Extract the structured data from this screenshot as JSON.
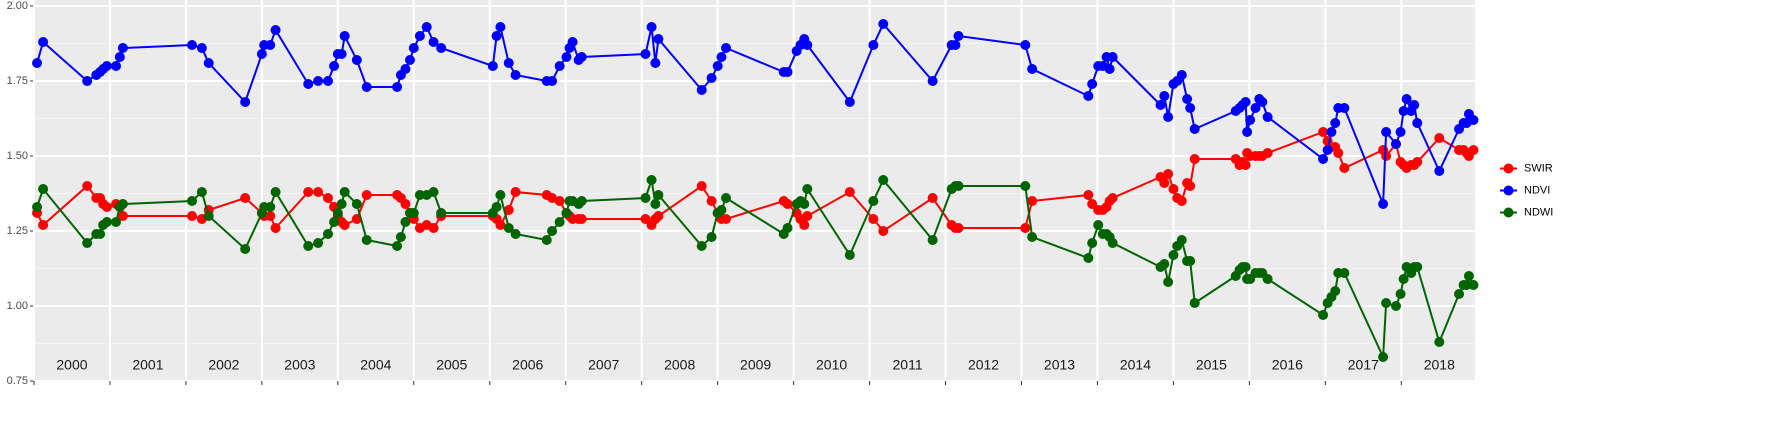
{
  "chart_data": {
    "type": "line",
    "x": [
      2000.04,
      2000.12,
      2000.7,
      2000.82,
      2000.87,
      2000.91,
      2000.96,
      2001.08,
      2001.13,
      2001.17,
      2002.08,
      2002.21,
      2002.3,
      2002.78,
      2003.0,
      2003.03,
      2003.11,
      2003.18,
      2003.61,
      2003.74,
      2003.87,
      2003.95,
      2004.0,
      2004.05,
      2004.09,
      2004.25,
      2004.38,
      2004.78,
      2004.83,
      2004.89,
      2004.95,
      2005.0,
      2005.08,
      2005.17,
      2005.26,
      2005.36,
      2006.04,
      2006.09,
      2006.14,
      2006.25,
      2006.34,
      2006.75,
      2006.82,
      2006.92,
      2007.01,
      2007.05,
      2007.09,
      2007.17,
      2007.21,
      2008.05,
      2008.13,
      2008.18,
      2008.22,
      2008.79,
      2008.92,
      2009.0,
      2009.05,
      2009.11,
      2009.87,
      2009.92,
      2010.04,
      2010.09,
      2010.14,
      2010.18,
      2010.74,
      2011.05,
      2011.18,
      2011.83,
      2012.08,
      2012.13,
      2012.17,
      2013.05,
      2013.14,
      2013.88,
      2013.93,
      2014.01,
      2014.07,
      2014.12,
      2014.16,
      2014.2,
      2014.83,
      2014.88,
      2014.93,
      2015.0,
      2015.05,
      2015.11,
      2015.18,
      2015.22,
      2015.28,
      2015.82,
      2015.87,
      2015.91,
      2015.95,
      2015.97,
      2016.01,
      2016.08,
      2016.13,
      2016.17,
      2016.24,
      2016.97,
      2017.03,
      2017.08,
      2017.13,
      2017.17,
      2017.25,
      2017.76,
      2017.8,
      2017.93,
      2017.99,
      2018.03,
      2018.07,
      2018.13,
      2018.17,
      2018.21,
      2018.5,
      2018.76,
      2018.82,
      2018.86,
      2018.89,
      2018.95
    ],
    "series": [
      {
        "name": "SWIR",
        "color": "#ff0000",
        "values": [
          1.31,
          1.27,
          1.4,
          1.36,
          1.36,
          1.34,
          1.33,
          1.34,
          1.33,
          1.3,
          1.3,
          1.29,
          1.32,
          1.36,
          1.31,
          1.3,
          1.3,
          1.26,
          1.38,
          1.38,
          1.36,
          1.33,
          1.3,
          1.28,
          1.27,
          1.29,
          1.37,
          1.37,
          1.36,
          1.34,
          1.31,
          1.29,
          1.26,
          1.27,
          1.26,
          1.3,
          1.3,
          1.29,
          1.27,
          1.32,
          1.38,
          1.37,
          1.36,
          1.35,
          1.31,
          1.3,
          1.29,
          1.29,
          1.29,
          1.29,
          1.27,
          1.29,
          1.3,
          1.4,
          1.35,
          1.31,
          1.29,
          1.29,
          1.35,
          1.34,
          1.31,
          1.29,
          1.27,
          1.3,
          1.38,
          1.29,
          1.25,
          1.36,
          1.27,
          1.26,
          1.26,
          1.26,
          1.35,
          1.37,
          1.34,
          1.32,
          1.32,
          1.33,
          1.35,
          1.36,
          1.43,
          1.41,
          1.44,
          1.39,
          1.36,
          1.35,
          1.41,
          1.4,
          1.49,
          1.49,
          1.47,
          1.48,
          1.47,
          1.51,
          1.5,
          1.5,
          1.5,
          1.5,
          1.51,
          1.58,
          1.55,
          1.53,
          1.53,
          1.51,
          1.46,
          1.52,
          1.5,
          1.54,
          1.48,
          1.47,
          1.46,
          1.47,
          1.47,
          1.48,
          1.56,
          1.52,
          1.52,
          1.51,
          1.5,
          1.52
        ]
      },
      {
        "name": "NDVI",
        "color": "#0000ff",
        "values": [
          1.81,
          1.88,
          1.75,
          1.77,
          1.78,
          1.79,
          1.8,
          1.8,
          1.83,
          1.86,
          1.87,
          1.86,
          1.81,
          1.68,
          1.84,
          1.87,
          1.87,
          1.92,
          1.74,
          1.75,
          1.75,
          1.8,
          1.84,
          1.84,
          1.9,
          1.82,
          1.73,
          1.73,
          1.77,
          1.79,
          1.82,
          1.86,
          1.9,
          1.93,
          1.88,
          1.86,
          1.8,
          1.9,
          1.93,
          1.81,
          1.77,
          1.75,
          1.75,
          1.8,
          1.83,
          1.86,
          1.88,
          1.82,
          1.83,
          1.84,
          1.93,
          1.81,
          1.89,
          1.72,
          1.76,
          1.8,
          1.83,
          1.86,
          1.78,
          1.78,
          1.85,
          1.87,
          1.89,
          1.87,
          1.68,
          1.87,
          1.94,
          1.75,
          1.87,
          1.87,
          1.9,
          1.87,
          1.79,
          1.7,
          1.74,
          1.8,
          1.8,
          1.83,
          1.79,
          1.83,
          1.67,
          1.7,
          1.63,
          1.74,
          1.75,
          1.77,
          1.69,
          1.66,
          1.59,
          1.65,
          1.66,
          1.67,
          1.68,
          1.58,
          1.62,
          1.66,
          1.69,
          1.68,
          1.63,
          1.49,
          1.52,
          1.58,
          1.61,
          1.66,
          1.66,
          1.34,
          1.58,
          1.54,
          1.58,
          1.65,
          1.69,
          1.65,
          1.67,
          1.61,
          1.45,
          1.59,
          1.61,
          1.61,
          1.64,
          1.62
        ]
      },
      {
        "name": "NDWI",
        "color": "#006400",
        "values": [
          1.33,
          1.39,
          1.21,
          1.24,
          1.24,
          1.27,
          1.28,
          1.28,
          1.33,
          1.34,
          1.35,
          1.38,
          1.3,
          1.19,
          1.31,
          1.33,
          1.33,
          1.38,
          1.2,
          1.21,
          1.24,
          1.28,
          1.31,
          1.34,
          1.38,
          1.34,
          1.22,
          1.2,
          1.23,
          1.28,
          1.31,
          1.31,
          1.37,
          1.37,
          1.38,
          1.31,
          1.31,
          1.33,
          1.37,
          1.26,
          1.24,
          1.22,
          1.25,
          1.28,
          1.31,
          1.35,
          1.35,
          1.34,
          1.35,
          1.36,
          1.42,
          1.34,
          1.37,
          1.2,
          1.23,
          1.31,
          1.32,
          1.36,
          1.24,
          1.26,
          1.34,
          1.35,
          1.34,
          1.39,
          1.17,
          1.35,
          1.42,
          1.22,
          1.39,
          1.4,
          1.4,
          1.4,
          1.23,
          1.16,
          1.21,
          1.27,
          1.24,
          1.24,
          1.23,
          1.21,
          1.13,
          1.14,
          1.08,
          1.17,
          1.2,
          1.22,
          1.15,
          1.15,
          1.01,
          1.1,
          1.12,
          1.13,
          1.13,
          1.09,
          1.09,
          1.11,
          1.11,
          1.11,
          1.09,
          0.97,
          1.01,
          1.03,
          1.05,
          1.11,
          1.11,
          0.83,
          1.01,
          1.0,
          1.04,
          1.09,
          1.13,
          1.11,
          1.13,
          1.13,
          0.88,
          1.04,
          1.07,
          1.07,
          1.1,
          1.07
        ]
      }
    ],
    "xlim": [
      2000,
      2018.97
    ],
    "ylim": [
      0.75,
      2.02
    ],
    "yticks": [
      0.75,
      {
        "value": 1,
        "label": "1.00"
      },
      1.25,
      {
        "value": 1.5,
        "label": "1.50"
      },
      1.75,
      {
        "value": 2,
        "label": "2.00"
      }
    ],
    "xgrid": [
      2000,
      2001,
      2002,
      2003,
      2004,
      2005,
      2006,
      2007,
      2008,
      2009,
      2010,
      2011,
      2012,
      2013,
      2014,
      2015,
      2016,
      2017,
      2018
    ],
    "xticks": [
      {
        "value": 2000.5,
        "label": "2000"
      },
      {
        "value": 2001.5,
        "label": "2001"
      },
      {
        "value": 2002.5,
        "label": "2002"
      },
      {
        "value": 2003.5,
        "label": "2003"
      },
      {
        "value": 2004.5,
        "label": "2004"
      },
      {
        "value": 2005.5,
        "label": "2005"
      },
      {
        "value": 2006.5,
        "label": "2006"
      },
      {
        "value": 2007.5,
        "label": "2007"
      },
      {
        "value": 2008.5,
        "label": "2008"
      },
      {
        "value": 2009.5,
        "label": "2009"
      },
      {
        "value": 2010.5,
        "label": "2010"
      },
      {
        "value": 2011.5,
        "label": "2011"
      },
      {
        "value": 2012.5,
        "label": "2012"
      },
      {
        "value": 2013.5,
        "label": "2013"
      },
      {
        "value": 2014.5,
        "label": "2014"
      },
      {
        "value": 2015.5,
        "label": "2015"
      },
      {
        "value": 2016.5,
        "label": "2016"
      },
      {
        "value": 2017.5,
        "label": "2017"
      },
      {
        "value": 2018.5,
        "label": "2018"
      }
    ],
    "grid": true,
    "legend": "right"
  }
}
